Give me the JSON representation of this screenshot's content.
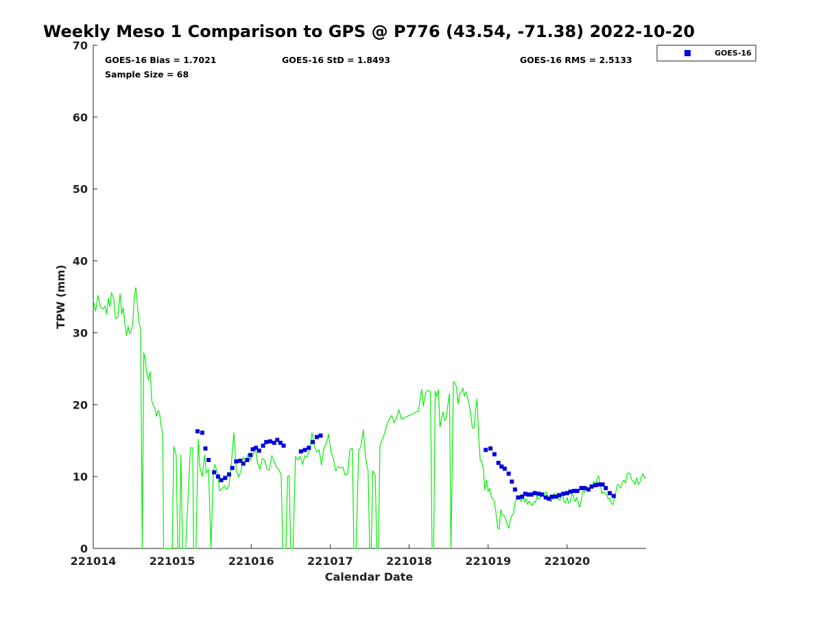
{
  "chart_data": {
    "type": "scatter",
    "title": "Weekly Meso 1 Comparison to GPS @ P776 (43.54, -71.38) 2022-10-20",
    "xlabel": "Calendar Date",
    "ylabel": "TPW (mm)",
    "xlim": [
      0,
      7
    ],
    "ylim": [
      0,
      70
    ],
    "x_ticks": [
      0,
      1,
      2,
      3,
      4,
      5,
      6
    ],
    "x_tick_labels": [
      "221014",
      "221015",
      "221016",
      "221017",
      "221018",
      "221019",
      "221020"
    ],
    "y_ticks": [
      0,
      10,
      20,
      30,
      40,
      50,
      60,
      70
    ],
    "y_tick_labels": [
      "0",
      "10",
      "20",
      "30",
      "40",
      "50",
      "60",
      "70"
    ],
    "x_unit": "days since 221014",
    "stats": {
      "bias": "GOES-16 Bias = 1.7021",
      "std": "GOES-16 StD = 1.8493",
      "rms": "GOES-16 RMS = 2.5133",
      "sample": "Sample Size = 68"
    },
    "legend": {
      "position": "top-right-outside",
      "entries": [
        {
          "label": "GOES-16",
          "marker": "square",
          "color": "#0000dd"
        }
      ]
    },
    "gps_line": {
      "color": "#00ee00",
      "points": [
        [
          0.0,
          34.5
        ],
        [
          0.03,
          33.0
        ],
        [
          0.06,
          35.2
        ],
        [
          0.09,
          33.6
        ],
        [
          0.12,
          33.3
        ],
        [
          0.15,
          33.7
        ],
        [
          0.17,
          32.6
        ],
        [
          0.19,
          34.8
        ],
        [
          0.21,
          33.6
        ],
        [
          0.23,
          35.6
        ],
        [
          0.26,
          34.7
        ],
        [
          0.28,
          32.0
        ],
        [
          0.31,
          32.1
        ],
        [
          0.34,
          35.4
        ],
        [
          0.36,
          32.6
        ],
        [
          0.38,
          33.5
        ],
        [
          0.4,
          31.1
        ],
        [
          0.42,
          29.6
        ],
        [
          0.44,
          30.9
        ],
        [
          0.46,
          29.9
        ],
        [
          0.48,
          30.2
        ],
        [
          0.5,
          31.3
        ],
        [
          0.52,
          35.2
        ],
        [
          0.54,
          36.3
        ],
        [
          0.56,
          33.6
        ],
        [
          0.58,
          31.4
        ],
        [
          0.6,
          30.5
        ],
        [
          0.62,
          0
        ],
        [
          0.64,
          27.2
        ],
        [
          0.66,
          26.2
        ],
        [
          0.68,
          24.1
        ],
        [
          0.7,
          23.5
        ],
        [
          0.72,
          24.6
        ],
        [
          0.74,
          20.6
        ],
        [
          0.76,
          19.9
        ],
        [
          0.78,
          19.5
        ],
        [
          0.8,
          18.4
        ],
        [
          0.82,
          19.2
        ],
        [
          0.84,
          18.8
        ],
        [
          0.86,
          16.9
        ],
        [
          0.88,
          16.1
        ],
        [
          0.89,
          0
        ],
        [
          0.91,
          0
        ],
        [
          0.95,
          0
        ],
        [
          1.0,
          0
        ],
        [
          1.02,
          14.2
        ],
        [
          1.05,
          13.0
        ],
        [
          1.07,
          0
        ],
        [
          1.09,
          0
        ],
        [
          1.11,
          13.0
        ],
        [
          1.13,
          0
        ],
        [
          1.17,
          0
        ],
        [
          1.23,
          14.0
        ],
        [
          1.26,
          14.0
        ],
        [
          1.27,
          0
        ],
        [
          1.3,
          0
        ],
        [
          1.33,
          15.2
        ],
        [
          1.35,
          11.3
        ],
        [
          1.38,
          10.0
        ],
        [
          1.41,
          13.0
        ],
        [
          1.43,
          10.5
        ],
        [
          1.46,
          11.0
        ],
        [
          1.49,
          0
        ],
        [
          1.52,
          10.5
        ],
        [
          1.54,
          11.7
        ],
        [
          1.57,
          10.6
        ],
        [
          1.6,
          8.0
        ],
        [
          1.63,
          8.3
        ],
        [
          1.66,
          8.7
        ],
        [
          1.69,
          8.2
        ],
        [
          1.72,
          8.8
        ],
        [
          1.75,
          12.0
        ],
        [
          1.78,
          16.1
        ],
        [
          1.81,
          11.0
        ],
        [
          1.84,
          9.9
        ],
        [
          1.87,
          10.8
        ],
        [
          1.9,
          12.7
        ],
        [
          1.93,
          12.1
        ],
        [
          1.96,
          13.1
        ],
        [
          1.99,
          12.3
        ],
        [
          2.02,
          12.9
        ],
        [
          2.05,
          14.1
        ],
        [
          2.08,
          11.9
        ],
        [
          2.11,
          11.0
        ],
        [
          2.14,
          12.5
        ],
        [
          2.17,
          12.3
        ],
        [
          2.2,
          11.0
        ],
        [
          2.23,
          10.9
        ],
        [
          2.26,
          12.9
        ],
        [
          2.29,
          12.1
        ],
        [
          2.32,
          11.3
        ],
        [
          2.35,
          11.0
        ],
        [
          2.38,
          10.2
        ],
        [
          2.4,
          0
        ],
        [
          2.44,
          0
        ],
        [
          2.46,
          10.0
        ],
        [
          2.48,
          10.1
        ],
        [
          2.5,
          0
        ],
        [
          2.53,
          0
        ],
        [
          2.56,
          12.8
        ],
        [
          2.59,
          12.3
        ],
        [
          2.62,
          12.8
        ],
        [
          2.65,
          11.7
        ],
        [
          2.68,
          12.9
        ],
        [
          2.71,
          12.7
        ],
        [
          2.74,
          13.8
        ],
        [
          2.77,
          16.1
        ],
        [
          2.8,
          14.3
        ],
        [
          2.83,
          13.4
        ],
        [
          2.86,
          13.7
        ],
        [
          2.89,
          11.6
        ],
        [
          2.92,
          13.9
        ],
        [
          2.95,
          14.6
        ],
        [
          2.98,
          15.9
        ],
        [
          3.01,
          13.4
        ],
        [
          3.04,
          12.6
        ],
        [
          3.07,
          10.8
        ],
        [
          3.1,
          11.4
        ],
        [
          3.13,
          11.2
        ],
        [
          3.16,
          11.3
        ],
        [
          3.19,
          10.2
        ],
        [
          3.22,
          10.3
        ],
        [
          3.25,
          13.8
        ],
        [
          3.28,
          13.9
        ],
        [
          3.3,
          0
        ],
        [
          3.33,
          0
        ],
        [
          3.36,
          13.5
        ],
        [
          3.39,
          14.2
        ],
        [
          3.42,
          16.5
        ],
        [
          3.45,
          12.5
        ],
        [
          3.48,
          10.8
        ],
        [
          3.5,
          0
        ],
        [
          3.52,
          0
        ],
        [
          3.54,
          10.8
        ],
        [
          3.57,
          10.2
        ],
        [
          3.59,
          0
        ],
        [
          3.61,
          0
        ],
        [
          3.63,
          14.3
        ],
        [
          3.66,
          15.2
        ],
        [
          3.69,
          16.0
        ],
        [
          3.72,
          17.3
        ],
        [
          3.75,
          18.0
        ],
        [
          3.78,
          18.5
        ],
        [
          3.81,
          17.5
        ],
        [
          3.84,
          18.2
        ],
        [
          3.87,
          19.3
        ],
        [
          3.9,
          18.0
        ],
        [
          3.93,
          18.1
        ],
        [
          3.98,
          18.4
        ],
        [
          4.04,
          18.7
        ],
        [
          4.09,
          19.0
        ],
        [
          4.12,
          19.1
        ],
        [
          4.14,
          21.0
        ],
        [
          4.16,
          22.1
        ],
        [
          4.18,
          19.8
        ],
        [
          4.21,
          21.7
        ],
        [
          4.24,
          22.0
        ],
        [
          4.27,
          21.8
        ],
        [
          4.29,
          0
        ],
        [
          4.31,
          0
        ],
        [
          4.33,
          21.9
        ],
        [
          4.35,
          21.1
        ],
        [
          4.37,
          22.1
        ],
        [
          4.39,
          16.9
        ],
        [
          4.41,
          18.0
        ],
        [
          4.43,
          19.0
        ],
        [
          4.45,
          17.8
        ],
        [
          4.47,
          18.1
        ],
        [
          4.49,
          20.0
        ],
        [
          4.51,
          21.5
        ],
        [
          4.53,
          0
        ],
        [
          4.56,
          23.2
        ],
        [
          4.58,
          23.0
        ],
        [
          4.6,
          22.4
        ],
        [
          4.62,
          20.1
        ],
        [
          4.64,
          21.6
        ],
        [
          4.66,
          21.7
        ],
        [
          4.68,
          22.3
        ],
        [
          4.7,
          21.2
        ],
        [
          4.72,
          21.8
        ],
        [
          4.74,
          20.9
        ],
        [
          4.76,
          20.0
        ],
        [
          4.78,
          18.6
        ],
        [
          4.8,
          16.8
        ],
        [
          4.82,
          16.7
        ],
        [
          4.84,
          19.2
        ],
        [
          4.86,
          20.8
        ],
        [
          4.88,
          15.6
        ],
        [
          4.9,
          12.3
        ],
        [
          4.92,
          12.1
        ],
        [
          4.94,
          11.0
        ],
        [
          4.96,
          8.1
        ],
        [
          4.98,
          9.5
        ],
        [
          5.0,
          7.9
        ],
        [
          5.02,
          8.4
        ],
        [
          5.04,
          7.2
        ],
        [
          5.06,
          6.9
        ],
        [
          5.08,
          6.5
        ],
        [
          5.1,
          4.9
        ],
        [
          5.12,
          2.9
        ],
        [
          5.14,
          2.7
        ],
        [
          5.16,
          5.4
        ],
        [
          5.18,
          4.7
        ],
        [
          5.2,
          4.6
        ],
        [
          5.22,
          4.2
        ],
        [
          5.24,
          3.4
        ],
        [
          5.26,
          2.8
        ],
        [
          5.28,
          3.9
        ],
        [
          5.3,
          4.6
        ],
        [
          5.32,
          4.8
        ],
        [
          5.34,
          6.4
        ],
        [
          5.36,
          7.0
        ],
        [
          5.38,
          6.8
        ],
        [
          5.4,
          7.1
        ],
        [
          5.42,
          6.5
        ],
        [
          5.44,
          7.5
        ],
        [
          5.46,
          6.5
        ],
        [
          5.48,
          6.9
        ],
        [
          5.5,
          6.1
        ],
        [
          5.52,
          6.6
        ],
        [
          5.54,
          6.2
        ],
        [
          5.56,
          6.0
        ],
        [
          5.58,
          6.5
        ],
        [
          5.6,
          6.4
        ],
        [
          5.62,
          7.3
        ],
        [
          5.64,
          6.9
        ],
        [
          5.66,
          7.1
        ],
        [
          5.68,
          7.4
        ],
        [
          5.7,
          7.8
        ],
        [
          5.72,
          7.5
        ],
        [
          5.74,
          7.9
        ],
        [
          5.76,
          6.9
        ],
        [
          5.78,
          7.4
        ],
        [
          5.8,
          6.5
        ],
        [
          5.82,
          7.1
        ],
        [
          5.84,
          7.7
        ],
        [
          5.86,
          7.2
        ],
        [
          5.88,
          7.7
        ],
        [
          5.9,
          6.7
        ],
        [
          5.92,
          6.8
        ],
        [
          5.94,
          7.8
        ],
        [
          5.96,
          6.5
        ],
        [
          5.98,
          6.3
        ],
        [
          6.0,
          7.1
        ],
        [
          6.02,
          6.3
        ],
        [
          6.04,
          6.5
        ],
        [
          6.06,
          7.6
        ],
        [
          6.08,
          7.3
        ],
        [
          6.1,
          6.5
        ],
        [
          6.12,
          7.1
        ],
        [
          6.14,
          6.4
        ],
        [
          6.16,
          5.7
        ],
        [
          6.18,
          6.7
        ],
        [
          6.2,
          8.0
        ],
        [
          6.22,
          7.8
        ],
        [
          6.24,
          8.6
        ],
        [
          6.26,
          8.5
        ],
        [
          6.28,
          8.1
        ],
        [
          6.3,
          8.6
        ],
        [
          6.32,
          9.0
        ],
        [
          6.34,
          9.3
        ],
        [
          6.36,
          8.8
        ],
        [
          6.38,
          9.7
        ],
        [
          6.4,
          10.1
        ],
        [
          6.42,
          8.9
        ],
        [
          6.44,
          7.6
        ],
        [
          6.46,
          7.9
        ],
        [
          6.48,
          7.7
        ],
        [
          6.5,
          7.5
        ],
        [
          6.52,
          6.9
        ],
        [
          6.54,
          7.0
        ],
        [
          6.56,
          6.3
        ],
        [
          6.58,
          6.1
        ],
        [
          6.6,
          6.9
        ],
        [
          6.62,
          8.0
        ],
        [
          6.64,
          8.9
        ],
        [
          6.66,
          8.7
        ],
        [
          6.68,
          8.4
        ],
        [
          6.7,
          9.2
        ],
        [
          6.72,
          9.5
        ],
        [
          6.74,
          9.1
        ],
        [
          6.76,
          10.4
        ],
        [
          6.78,
          10.5
        ],
        [
          6.8,
          10.3
        ],
        [
          6.82,
          9.5
        ],
        [
          6.84,
          9.4
        ],
        [
          6.86,
          8.9
        ],
        [
          6.88,
          9.8
        ],
        [
          6.9,
          8.9
        ],
        [
          6.92,
          9.2
        ],
        [
          6.94,
          9.9
        ],
        [
          6.96,
          10.4
        ],
        [
          6.98,
          9.8
        ],
        [
          7.0,
          10.0
        ]
      ]
    },
    "goes_points": {
      "color": "#0000dd",
      "points": [
        [
          1.32,
          16.3
        ],
        [
          1.38,
          16.1
        ],
        [
          1.42,
          13.9
        ],
        [
          1.46,
          12.3
        ],
        [
          1.53,
          10.6
        ],
        [
          1.58,
          10.0
        ],
        [
          1.62,
          9.5
        ],
        [
          1.67,
          9.8
        ],
        [
          1.72,
          10.3
        ],
        [
          1.76,
          11.2
        ],
        [
          1.81,
          12.1
        ],
        [
          1.86,
          12.2
        ],
        [
          1.9,
          11.8
        ],
        [
          1.95,
          12.3
        ],
        [
          1.99,
          13.0
        ],
        [
          2.02,
          13.8
        ],
        [
          2.06,
          14.0
        ],
        [
          2.1,
          13.6
        ],
        [
          2.15,
          14.3
        ],
        [
          2.19,
          14.8
        ],
        [
          2.24,
          14.9
        ],
        [
          2.29,
          14.7
        ],
        [
          2.33,
          15.1
        ],
        [
          2.37,
          14.7
        ],
        [
          2.41,
          14.3
        ],
        [
          2.63,
          13.5
        ],
        [
          2.68,
          13.7
        ],
        [
          2.73,
          14.0
        ],
        [
          2.78,
          14.8
        ],
        [
          2.83,
          15.5
        ],
        [
          2.88,
          15.7
        ],
        [
          4.97,
          13.7
        ],
        [
          5.03,
          13.9
        ],
        [
          5.08,
          13.1
        ],
        [
          5.13,
          11.9
        ],
        [
          5.17,
          11.4
        ],
        [
          5.21,
          11.1
        ],
        [
          5.26,
          10.4
        ],
        [
          5.3,
          9.3
        ],
        [
          5.34,
          8.2
        ],
        [
          5.38,
          7.1
        ],
        [
          5.43,
          7.2
        ],
        [
          5.47,
          7.6
        ],
        [
          5.51,
          7.5
        ],
        [
          5.55,
          7.5
        ],
        [
          5.59,
          7.7
        ],
        [
          5.64,
          7.6
        ],
        [
          5.68,
          7.5
        ],
        [
          5.73,
          7.1
        ],
        [
          5.77,
          6.9
        ],
        [
          5.81,
          7.2
        ],
        [
          5.86,
          7.2
        ],
        [
          5.9,
          7.4
        ],
        [
          5.95,
          7.6
        ],
        [
          6.0,
          7.7
        ],
        [
          6.04,
          7.9
        ],
        [
          6.09,
          8.0
        ],
        [
          6.13,
          8.0
        ],
        [
          6.18,
          8.4
        ],
        [
          6.22,
          8.4
        ],
        [
          6.27,
          8.2
        ],
        [
          6.31,
          8.6
        ],
        [
          6.36,
          8.8
        ],
        [
          6.4,
          8.9
        ],
        [
          6.45,
          8.9
        ],
        [
          6.49,
          8.4
        ],
        [
          6.54,
          7.7
        ],
        [
          6.59,
          7.3
        ]
      ]
    }
  }
}
